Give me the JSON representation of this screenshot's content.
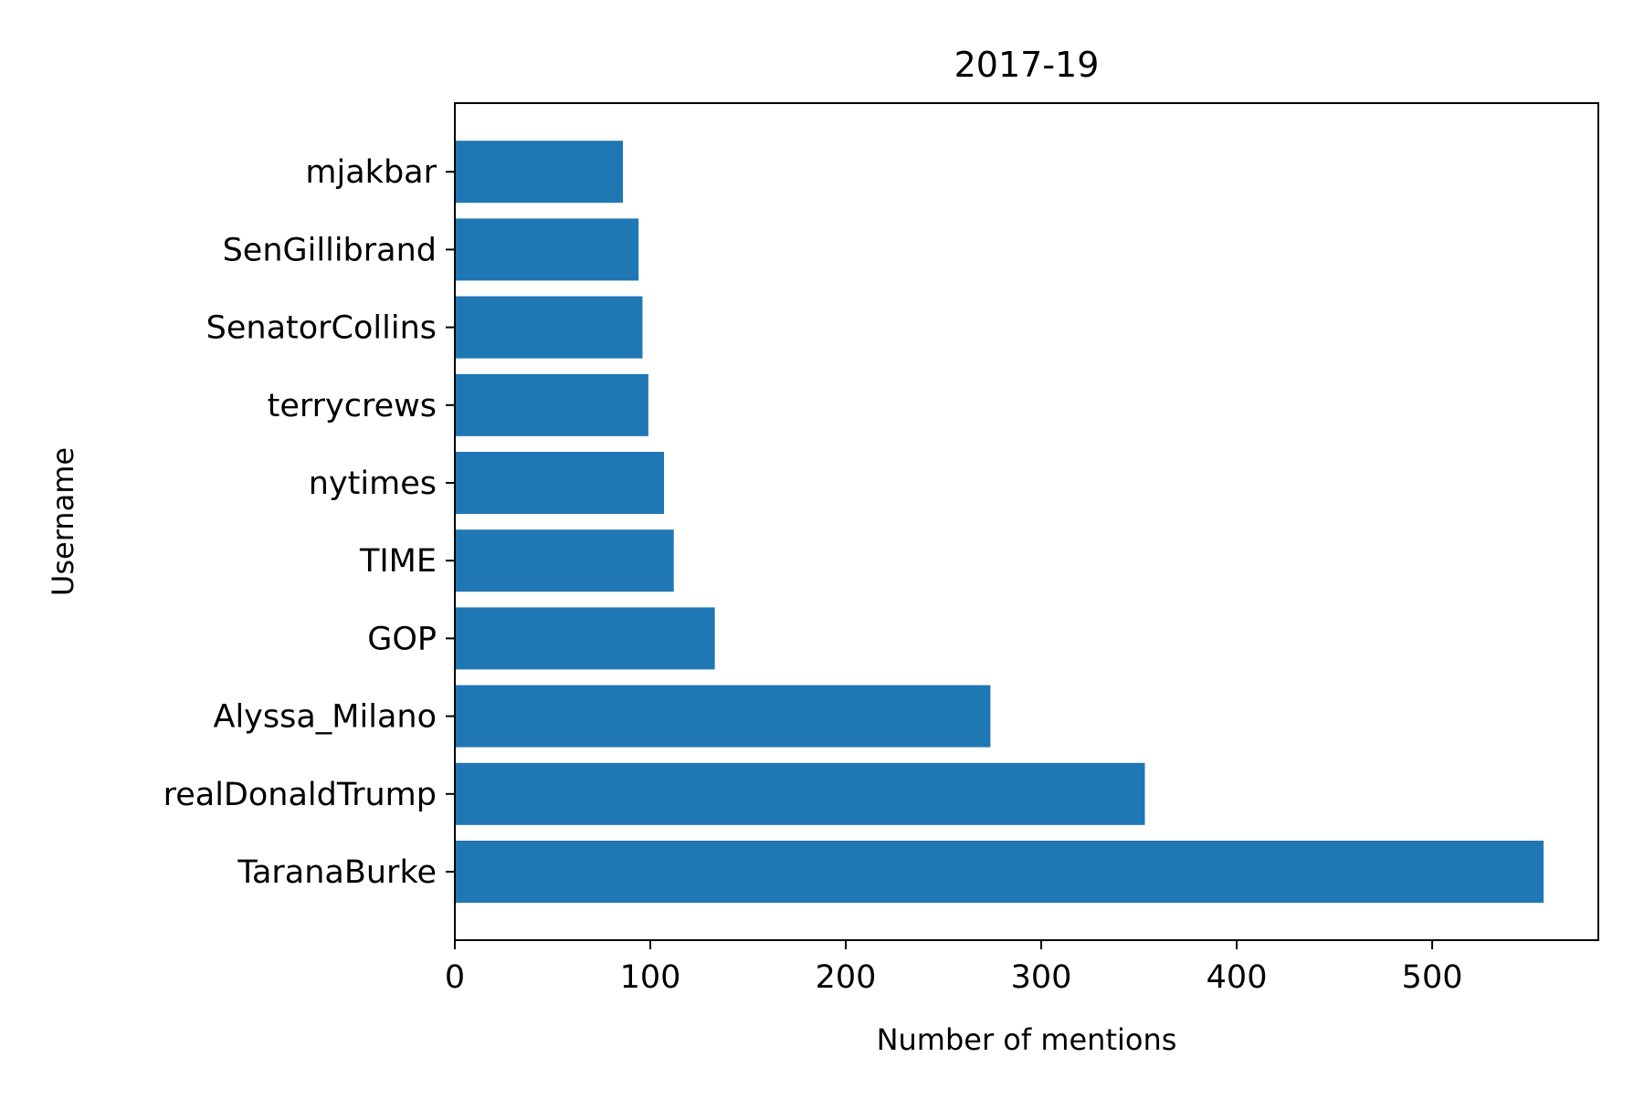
{
  "chart_data": {
    "type": "bar",
    "orientation": "horizontal",
    "title": "2017-19",
    "xlabel": "Number of mentions",
    "ylabel": "Username",
    "categories": [
      "TaranaBurke",
      "realDonaldTrump",
      "Alyssa_Milano",
      "GOP",
      "TIME",
      "nytimes",
      "terrycrews",
      "SenatorCollins",
      "SenGillibrand",
      "mjakbar"
    ],
    "values": [
      557,
      353,
      274,
      133,
      112,
      107,
      99,
      96,
      94,
      86
    ],
    "xlim": [
      0,
      585
    ],
    "xticks": [
      0,
      100,
      200,
      300,
      400,
      500
    ],
    "grid": false,
    "legend": "none",
    "bar_color": "#1f77b4"
  }
}
